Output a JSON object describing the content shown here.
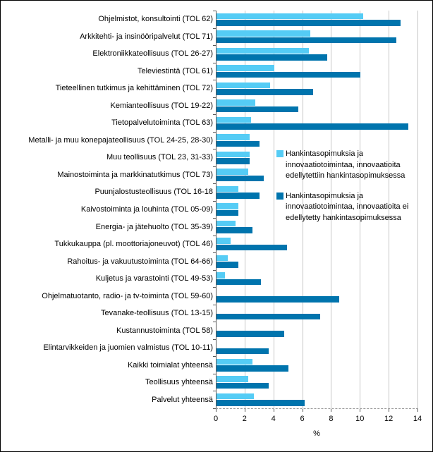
{
  "colors": {
    "light_series": "#55CCF5",
    "dark_series": "#0074AD",
    "gridline": "#C6C6C6",
    "axis": "#595959"
  },
  "chart_data": {
    "type": "bar",
    "orientation": "horizontal",
    "title": "",
    "xlabel": "%",
    "ylabel": "",
    "xlim": [
      0,
      14
    ],
    "xticks": [
      0,
      2,
      4,
      6,
      8,
      10,
      12,
      14
    ],
    "grid": true,
    "legend_position": "inside-middle-right",
    "categories": [
      "Ohjelmistot, konsultointi (TOL 62)",
      "Arkkitehti- ja insinööripalvelut (TOL 71)",
      "Elektroniikkateollisuus (TOL 26-27)",
      "Televiestintä (TOL 61)",
      "Tieteellinen tutkimus ja kehittäminen (TOL 72)",
      "Kemianteollisuus (TOL 19-22)",
      "Tietopalvelutoiminta (TOL 63)",
      "Metalli- ja muu konepajateollisuus (TOL 24-25, 28-30)",
      "Muu teollisuus (TOL 23, 31-33)",
      "Mainostoiminta ja markkinatutkimus (TOL 73)",
      "Puunjalostusteollisuus (TOL 16-18",
      "Kaivostoiminta ja louhinta (TOL 05-09)",
      "Energia- ja jätehuolto (TOL 35-39)",
      "Tukkukauppa (pl. moottoriajoneuvot) (TOL 46)",
      "Rahoitus- ja vakuutustoiminta (TOL 64-66)",
      "Kuljetus ja varastointi (TOL 49-53)",
      "Ohjelmatuotanto, radio- ja tv-toiminta (TOL 59-60)",
      "Tevanake-teollisuus (TOL 13-15)",
      "Kustannustoiminta (TOL 58)",
      "Elintarvikkeiden ja juomien valmistus (TOL 10-11)",
      "Kaikki toimialat yhteensä",
      "Teollisuus yhteensä",
      "Palvelut yhteensä"
    ],
    "series": [
      {
        "name": "Hankintasopimuksia ja innovaatiotoimintaa, innovaatioita edellytettiin hankintasopimuksessa",
        "color": "#55CCF5",
        "values": [
          10.2,
          6.5,
          6.4,
          4.0,
          3.7,
          2.7,
          2.4,
          2.3,
          2.3,
          2.2,
          1.5,
          1.5,
          1.3,
          1.0,
          0.8,
          0.6,
          0,
          0,
          0,
          0,
          2.5,
          2.2,
          2.6
        ]
      },
      {
        "name": "Hankintasopimuksia ja innovaatiotoimintaa, innovaatioita ei edellytetty hankintasopimuksessa",
        "color": "#0074AD",
        "values": [
          12.8,
          12.5,
          7.7,
          10.0,
          6.7,
          5.7,
          13.3,
          3.0,
          2.3,
          3.3,
          3.0,
          1.5,
          2.5,
          4.9,
          1.5,
          3.1,
          8.5,
          7.2,
          4.7,
          3.6,
          5.0,
          3.6,
          6.1
        ]
      }
    ]
  }
}
